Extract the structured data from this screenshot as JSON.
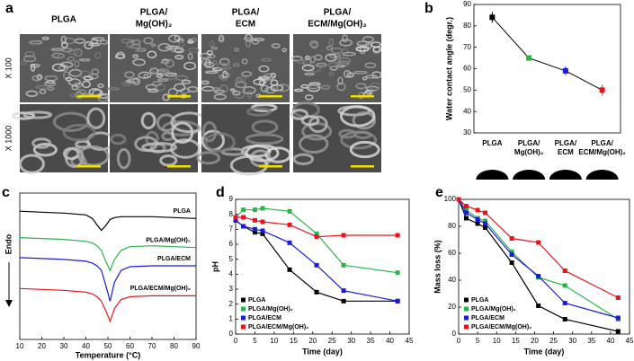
{
  "sem": {
    "label": "a",
    "columns": [
      {
        "lines": [
          "PLGA"
        ],
        "color": "#000000"
      },
      {
        "lines": [
          "PLGA/",
          "Mg(OH)₂"
        ],
        "color": "#2db34a"
      },
      {
        "lines": [
          "PLGA/",
          "ECM"
        ],
        "color": "#1a1adb"
      },
      {
        "lines": [
          "PLGA/",
          "ECM/Mg(OH)₂"
        ],
        "color": "#e8141c"
      }
    ],
    "rows": [
      "X 100",
      "X 1000"
    ]
  },
  "chart_data": [
    {
      "type": "errorline",
      "label": "b",
      "ylabel": "Water contact angle (degr.)",
      "categories": [
        [
          "PLGA"
        ],
        [
          "PLGA/",
          "Mg(OH)₂"
        ],
        [
          "PLGA/",
          "ECM"
        ],
        [
          "PLGA/",
          "ECM/Mg(OH)₂"
        ]
      ],
      "values": [
        84,
        65,
        59,
        50
      ],
      "errors": [
        2.5,
        1,
        2,
        2.5
      ],
      "colors": [
        "#000000",
        "#2db34a",
        "#1a1adb",
        "#e8141c"
      ],
      "ylim": [
        30,
        90
      ],
      "yticks": [
        30,
        40,
        50,
        60,
        70,
        80,
        90
      ]
    },
    {
      "type": "curves",
      "label": "c",
      "xlabel": "Temperature (°C)",
      "ylabel": "Endo",
      "x": [
        10,
        20,
        30,
        40,
        43,
        45,
        47,
        49,
        51,
        53,
        56,
        60,
        70,
        80,
        90
      ],
      "xlim": [
        10,
        90
      ],
      "xticks": [
        10,
        20,
        30,
        40,
        50,
        60,
        70,
        80,
        90
      ],
      "series": [
        {
          "name": "PLGA",
          "color": "#000000",
          "values": [
            163,
            162,
            161,
            159,
            155,
            148,
            142,
            147,
            154,
            156,
            157,
            157,
            157,
            156,
            155
          ]
        },
        {
          "name": "PLGA/Mg(OH)₂",
          "color": "#2db34a",
          "values": [
            134,
            133,
            132,
            130,
            128,
            125,
            120,
            108,
            98,
            110,
            120,
            124,
            125,
            124,
            123
          ]
        },
        {
          "name": "PLGA/ECM",
          "color": "#1a1adb",
          "values": [
            112,
            111,
            110,
            108,
            106,
            103,
            98,
            82,
            64,
            85,
            98,
            102,
            103,
            103,
            103
          ]
        },
        {
          "name": "PLGA/ECM/Mg(OH)₂",
          "color": "#e8141c",
          "values": [
            78,
            77,
            76,
            74,
            72,
            69,
            64,
            54,
            42,
            56,
            66,
            69,
            70,
            70,
            70
          ]
        }
      ]
    },
    {
      "type": "line",
      "label": "d",
      "xlabel": "Time (day)",
      "ylabel": "pH",
      "x": [
        0,
        2,
        5,
        7,
        14,
        21,
        28,
        42
      ],
      "xlim": [
        0,
        45
      ],
      "xticks": [
        0,
        5,
        10,
        15,
        20,
        25,
        30,
        35,
        40,
        45
      ],
      "ylim": [
        0,
        9
      ],
      "yticks": [
        0,
        1,
        2,
        3,
        4,
        5,
        6,
        7,
        8,
        9
      ],
      "legend": "lower left",
      "series": [
        {
          "name": "PLGA",
          "color": "#000000",
          "values": [
            7.6,
            7.2,
            6.8,
            6.7,
            4.3,
            2.8,
            2.2,
            2.2
          ]
        },
        {
          "name": "PLGA/Mg(OH)₂",
          "color": "#2db34a",
          "values": [
            7.8,
            8.3,
            8.3,
            8.4,
            8.2,
            6.7,
            4.6,
            4.1
          ]
        },
        {
          "name": "PLGA/ECM",
          "color": "#1a1adb",
          "values": [
            7.6,
            7.2,
            7.0,
            6.9,
            6.1,
            4.6,
            2.9,
            2.2
          ]
        },
        {
          "name": "PLGA/ECM/Mg(OH)₂",
          "color": "#e8141c",
          "values": [
            7.8,
            7.8,
            7.6,
            7.5,
            7.3,
            6.5,
            6.6,
            6.6
          ]
        }
      ]
    },
    {
      "type": "line",
      "label": "e",
      "xlabel": "Time (day)",
      "ylabel": "Mass loss (%)",
      "x": [
        0,
        2,
        5,
        7,
        14,
        21,
        28,
        42
      ],
      "xlim": [
        0,
        45
      ],
      "xticks": [
        0,
        5,
        10,
        15,
        20,
        25,
        30,
        35,
        40,
        45
      ],
      "ylim": [
        0,
        100
      ],
      "yticks": [
        0,
        20,
        40,
        60,
        80,
        100
      ],
      "legend": "lower left",
      "series": [
        {
          "name": "PLGA",
          "color": "#000000",
          "values": [
            100,
            86,
            82,
            79,
            53,
            21,
            11,
            2
          ]
        },
        {
          "name": "PLGA/Mg(OH)₂",
          "color": "#2db34a",
          "values": [
            100,
            92,
            86,
            84,
            61,
            42,
            36,
            11
          ]
        },
        {
          "name": "PLGA/ECM",
          "color": "#1a1adb",
          "values": [
            100,
            90,
            85,
            82,
            59,
            43,
            23,
            12
          ]
        },
        {
          "name": "PLGA/ECM/Mg(OH)₂",
          "color": "#e8141c",
          "values": [
            100,
            95,
            92,
            90,
            71,
            68,
            47,
            27
          ]
        }
      ]
    }
  ]
}
